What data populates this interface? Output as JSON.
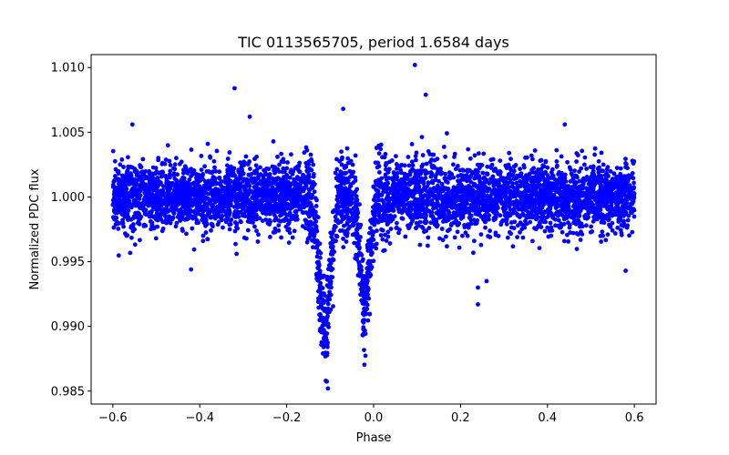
{
  "chart_data": {
    "type": "scatter",
    "title": "TIC 0113565705, period 1.6584 days",
    "xlabel": "Phase",
    "ylabel": "Normalized PDC flux",
    "xlim": [
      -0.65,
      0.65
    ],
    "ylim": [
      0.984,
      1.011
    ],
    "xticks": [
      -0.6,
      -0.4,
      -0.2,
      0.0,
      0.2,
      0.4,
      0.6
    ],
    "xtick_labels": [
      "−0.6",
      "−0.4",
      "−0.2",
      "0.0",
      "0.2",
      "0.4",
      "0.6"
    ],
    "yticks": [
      0.985,
      0.99,
      0.995,
      1.0,
      1.005,
      1.01
    ],
    "ytick_labels": [
      "0.985",
      "0.990",
      "0.995",
      "1.000",
      "1.005",
      "1.010"
    ],
    "grid": false,
    "marker_color": "#0000ff",
    "series": [
      {
        "name": "flux",
        "phase_range": [
          -0.6,
          0.6
        ],
        "baseline": 1.0,
        "scatter_sigma": 0.0013,
        "primary_dip": {
          "center": -0.112,
          "depth": 0.0105,
          "width": 0.018
        },
        "secondary_dip": {
          "center": -0.02,
          "depth": 0.0085,
          "width": 0.015
        },
        "outliers": [
          {
            "x": 0.095,
            "y": 1.0102
          },
          {
            "x": -0.32,
            "y": 1.0084
          },
          {
            "x": 0.12,
            "y": 1.0079
          },
          {
            "x": -0.07,
            "y": 1.0068
          },
          {
            "x": -0.285,
            "y": 1.0062
          },
          {
            "x": -0.555,
            "y": 1.0056
          },
          {
            "x": 0.44,
            "y": 1.0056
          },
          {
            "x": -0.11,
            "y": 0.9858
          },
          {
            "x": -0.105,
            "y": 0.9852
          },
          {
            "x": 0.24,
            "y": 0.9917
          },
          {
            "x": 0.24,
            "y": 0.993
          },
          {
            "x": 0.26,
            "y": 0.9935
          },
          {
            "x": -0.42,
            "y": 0.9944
          },
          {
            "x": 0.58,
            "y": 0.9943
          }
        ]
      }
    ]
  }
}
